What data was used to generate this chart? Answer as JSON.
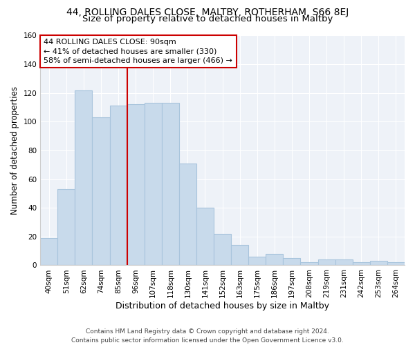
{
  "title": "44, ROLLING DALES CLOSE, MALTBY, ROTHERHAM, S66 8EJ",
  "subtitle": "Size of property relative to detached houses in Maltby",
  "xlabel": "Distribution of detached houses by size in Maltby",
  "ylabel": "Number of detached properties",
  "bar_color": "#c8daeb",
  "bar_edge_color": "#a8c4dc",
  "categories": [
    "40sqm",
    "51sqm",
    "62sqm",
    "74sqm",
    "85sqm",
    "96sqm",
    "107sqm",
    "118sqm",
    "130sqm",
    "141sqm",
    "152sqm",
    "163sqm",
    "175sqm",
    "186sqm",
    "197sqm",
    "208sqm",
    "219sqm",
    "231sqm",
    "242sqm",
    "253sqm",
    "264sqm"
  ],
  "values": [
    19,
    53,
    122,
    103,
    111,
    112,
    113,
    113,
    71,
    40,
    22,
    14,
    6,
    8,
    5,
    2,
    4,
    4,
    2,
    3,
    2
  ],
  "vline_x": 4.5,
  "vline_color": "#cc0000",
  "annotation_text": "44 ROLLING DALES CLOSE: 90sqm\n← 41% of detached houses are smaller (330)\n58% of semi-detached houses are larger (466) →",
  "annotation_box_color": "white",
  "annotation_box_edge": "#cc0000",
  "ylim": [
    0,
    160
  ],
  "yticks": [
    0,
    20,
    40,
    60,
    80,
    100,
    120,
    140,
    160
  ],
  "footer": "Contains HM Land Registry data © Crown copyright and database right 2024.\nContains public sector information licensed under the Open Government Licence v3.0.",
  "background_color": "white",
  "plot_bg_color": "#eef2f8",
  "grid_color": "white",
  "title_fontsize": 10,
  "subtitle_fontsize": 9.5,
  "xlabel_fontsize": 9,
  "ylabel_fontsize": 8.5,
  "tick_fontsize": 7.5,
  "annotation_fontsize": 8,
  "footer_fontsize": 6.5
}
